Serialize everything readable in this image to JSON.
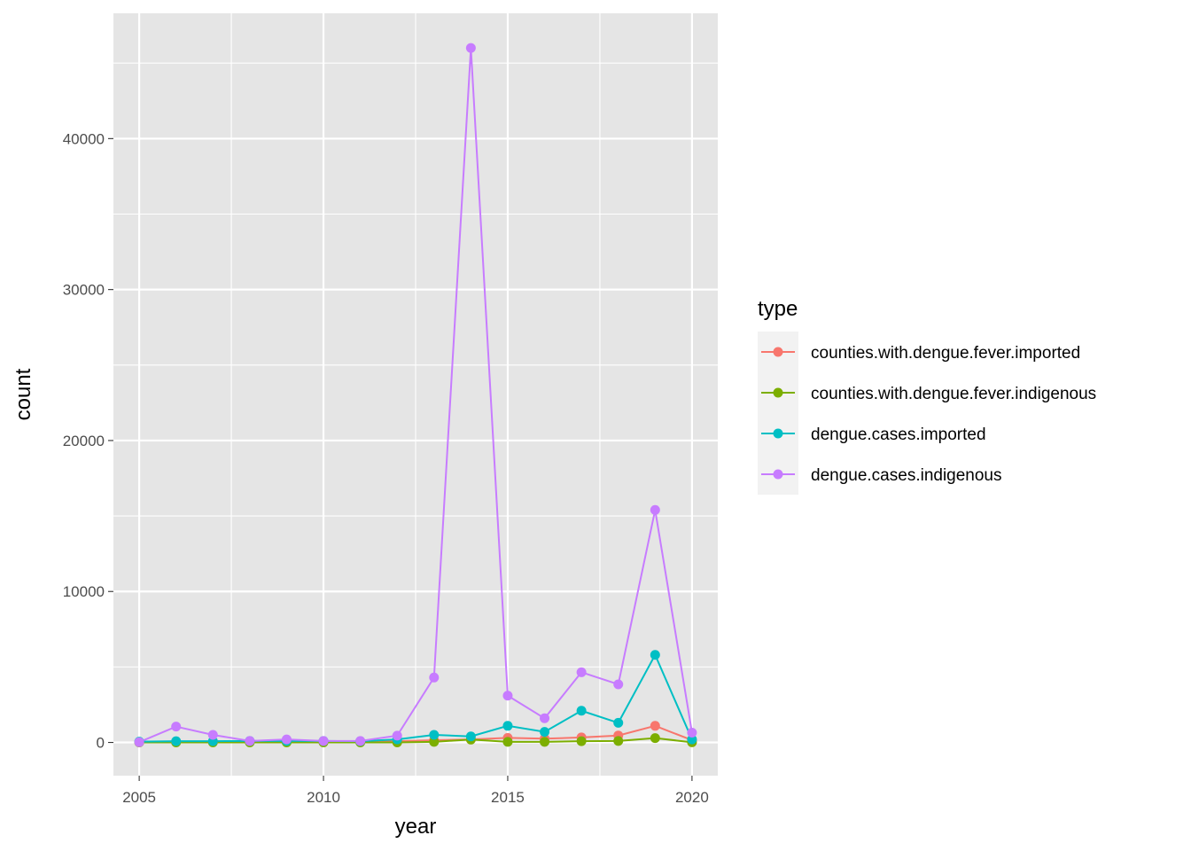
{
  "chart_data": {
    "type": "line",
    "xlabel": "year",
    "ylabel": "count",
    "xlim": [
      2004.3,
      2020.7
    ],
    "ylim": [
      -2200,
      48300
    ],
    "x_ticks": [
      2005,
      2010,
      2015,
      2020
    ],
    "y_ticks": [
      0,
      10000,
      20000,
      30000,
      40000
    ],
    "x_tick_labels": [
      "2005",
      "2010",
      "2015",
      "2020"
    ],
    "y_tick_labels": [
      "0",
      "10000",
      "20000",
      "30000",
      "40000"
    ],
    "grid": true,
    "panel_background": "#e5e5e5",
    "legend": {
      "title": "type",
      "placement": "right"
    },
    "x": [
      2005,
      2006,
      2007,
      2008,
      2009,
      2010,
      2011,
      2012,
      2013,
      2014,
      2015,
      2016,
      2017,
      2018,
      2019,
      2020
    ],
    "series": [
      {
        "name": "counties.with.dengue.fever.imported",
        "color": "#F8766D",
        "values": [
          10,
          20,
          30,
          40,
          50,
          40,
          60,
          80,
          150,
          200,
          300,
          250,
          330,
          460,
          1100,
          150
        ]
      },
      {
        "name": "counties.with.dengue.fever.indigenous",
        "color": "#7CAE00",
        "values": [
          2,
          5,
          5,
          3,
          5,
          3,
          5,
          5,
          40,
          190,
          40,
          40,
          80,
          100,
          290,
          10
        ]
      },
      {
        "name": "dengue.cases.imported",
        "color": "#00BFC4",
        "values": [
          50,
          80,
          80,
          100,
          100,
          100,
          80,
          200,
          500,
          400,
          1100,
          700,
          2100,
          1300,
          5800,
          200
        ]
      },
      {
        "name": "dengue.cases.indigenous",
        "color": "#C77CFF",
        "values": [
          20,
          1050,
          500,
          100,
          200,
          100,
          100,
          450,
          4300,
          46000,
          3100,
          1600,
          4650,
          3850,
          15400,
          650
        ]
      }
    ]
  }
}
